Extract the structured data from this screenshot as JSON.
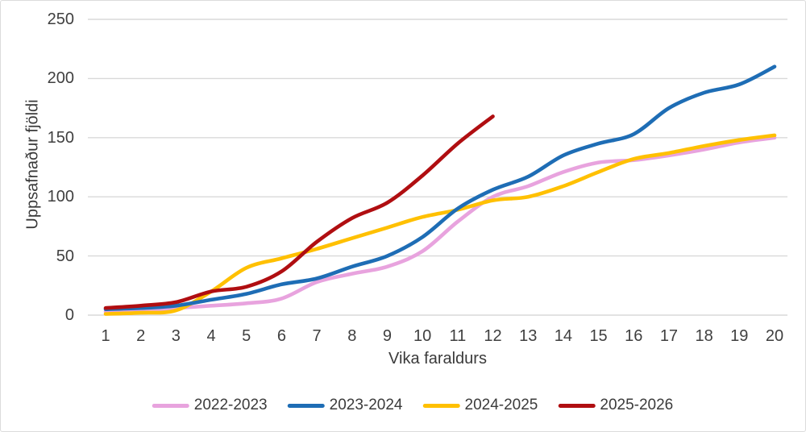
{
  "chart_data": {
    "type": "line",
    "xlabel": "Vika faraldurs",
    "ylabel": "Uppsafnaður fjöldi",
    "x": [
      1,
      2,
      3,
      4,
      5,
      6,
      7,
      8,
      9,
      10,
      11,
      12,
      13,
      14,
      15,
      16,
      17,
      18,
      19,
      20
    ],
    "ylim": [
      0,
      250
    ],
    "yticks": [
      0,
      50,
      100,
      150,
      200,
      250
    ],
    "grid": "horizontal",
    "legend_position": "bottom",
    "background": "#ffffff",
    "gridline_color": "#d9d9d9",
    "series": [
      {
        "name": "2022-2023",
        "color": "#E8A3DE",
        "values": [
          3,
          4,
          6,
          8,
          10,
          14,
          28,
          35,
          41,
          54,
          79,
          100,
          109,
          121,
          129,
          131,
          135,
          140,
          146,
          150
        ]
      },
      {
        "name": "2023-2024",
        "color": "#1E6DB5",
        "values": [
          5,
          6,
          8,
          13,
          18,
          26,
          31,
          41,
          50,
          66,
          90,
          106,
          117,
          135,
          145,
          153,
          175,
          188,
          195,
          210
        ]
      },
      {
        "name": "2024-2025",
        "color": "#FFC000",
        "values": [
          1,
          2,
          4,
          20,
          40,
          48,
          56,
          65,
          74,
          83,
          89,
          97,
          100,
          109,
          121,
          132,
          137,
          143,
          148,
          152
        ]
      },
      {
        "name": "2025-2026",
        "color": "#B00E11",
        "values": [
          6,
          8,
          11,
          20,
          24,
          37,
          62,
          82,
          95,
          118,
          145,
          168
        ]
      }
    ]
  }
}
